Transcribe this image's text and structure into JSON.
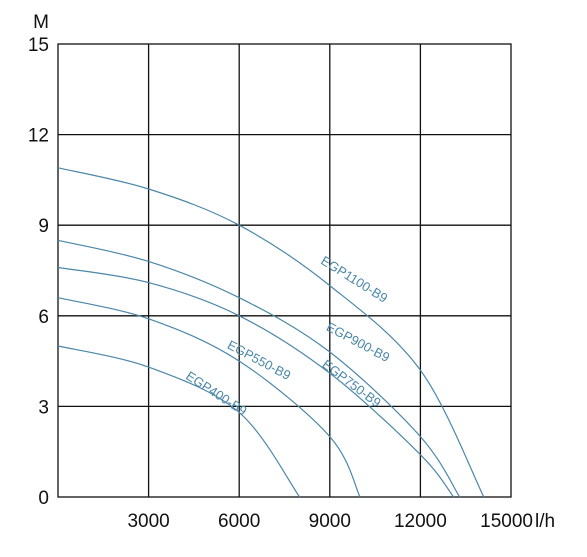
{
  "chart_data": {
    "type": "line",
    "x_unit": "l/h",
    "y_unit": "M",
    "xlim": [
      0,
      15000
    ],
    "ylim": [
      0,
      15
    ],
    "x_ticks": [
      "3000",
      "6000",
      "9000",
      "12000",
      "15000"
    ],
    "y_ticks": [
      "0",
      "3",
      "6",
      "9",
      "12",
      "15"
    ],
    "grid": true,
    "series_color": "#4a87a8",
    "series": [
      {
        "name": "EGP1100-B9",
        "x": [
          0,
          3000,
          6000,
          9000,
          12000,
          14100
        ],
        "y": [
          10.9,
          10.2,
          9.0,
          7.0,
          4.2,
          0
        ]
      },
      {
        "name": "EGP900-B9",
        "x": [
          0,
          3000,
          6000,
          9000,
          12000,
          13300
        ],
        "y": [
          8.5,
          7.8,
          6.6,
          4.8,
          2.0,
          0
        ]
      },
      {
        "name": "EGP750-B9",
        "x": [
          0,
          3000,
          6000,
          9000,
          12000,
          13100
        ],
        "y": [
          7.6,
          7.1,
          6.0,
          4.1,
          1.4,
          0
        ]
      },
      {
        "name": "EGP550-B9",
        "x": [
          0,
          3000,
          6000,
          9000,
          10000
        ],
        "y": [
          6.6,
          5.9,
          4.5,
          2.0,
          0
        ]
      },
      {
        "name": "EGP400-B9",
        "x": [
          0,
          3000,
          6000,
          8000
        ],
        "y": [
          5.0,
          4.3,
          2.8,
          0
        ]
      }
    ]
  }
}
